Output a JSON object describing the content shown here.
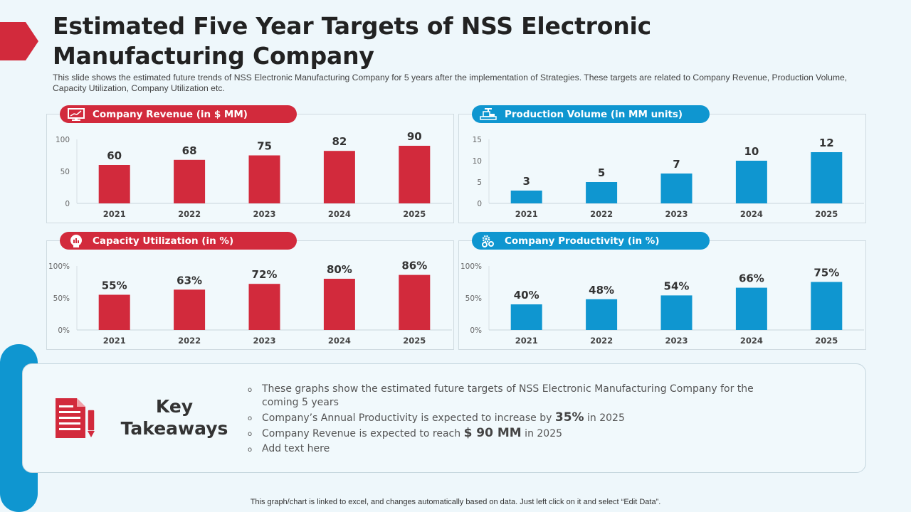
{
  "header": {
    "title_line1": "Estimated Five Year Targets of NSS Electronic",
    "title_line2": "Manufacturing Company",
    "subtitle": "This slide shows the estimated future trends of NSS Electronic Manufacturing Company for 5 years after the implementation of Strategies. These targets are related to Company Revenue, Production Volume, Capacity Utilization, Company Utilization etc."
  },
  "colors": {
    "red": "#d22a3c",
    "blue": "#0f96d0"
  },
  "chart_data": [
    {
      "type": "bar",
      "title": "Company Revenue (in $ MM)",
      "icon": "monitor-chart-icon",
      "color": "#d22a3c",
      "categories": [
        "2021",
        "2022",
        "2023",
        "2024",
        "2025"
      ],
      "values": [
        60,
        68,
        75,
        82,
        90
      ],
      "value_labels": [
        "60",
        "68",
        "75",
        "82",
        "90"
      ],
      "yticks": [
        "0",
        "50",
        "100"
      ],
      "ylim": [
        0,
        100
      ],
      "xlabel": "",
      "ylabel": ""
    },
    {
      "type": "bar",
      "title": "Production Volume (in MM units)",
      "icon": "factory-icon",
      "color": "#0f96d0",
      "categories": [
        "2021",
        "2022",
        "2023",
        "2024",
        "2025"
      ],
      "values": [
        3,
        5,
        7,
        10,
        12
      ],
      "value_labels": [
        "3",
        "5",
        "7",
        "10",
        "12"
      ],
      "yticks": [
        "0",
        "5",
        "10",
        "15"
      ],
      "ylim": [
        0,
        15
      ],
      "xlabel": "",
      "ylabel": ""
    },
    {
      "type": "bar",
      "title": "Capacity Utilization (in %)",
      "icon": "head-chart-icon",
      "color": "#d22a3c",
      "categories": [
        "2021",
        "2022",
        "2023",
        "2024",
        "2025"
      ],
      "values": [
        55,
        63,
        72,
        80,
        86
      ],
      "value_labels": [
        "55%",
        "63%",
        "72%",
        "80%",
        "86%"
      ],
      "yticks": [
        "0%",
        "50%",
        "100%"
      ],
      "ylim": [
        0,
        100
      ],
      "xlabel": "",
      "ylabel": ""
    },
    {
      "type": "bar",
      "title": "Company Productivity (in %)",
      "icon": "gears-icon",
      "color": "#0f96d0",
      "categories": [
        "2021",
        "2022",
        "2023",
        "2024",
        "2025"
      ],
      "values": [
        40,
        48,
        54,
        66,
        75
      ],
      "value_labels": [
        "40%",
        "48%",
        "54%",
        "66%",
        "75%"
      ],
      "yticks": [
        "0%",
        "50%",
        "100%"
      ],
      "ylim": [
        0,
        100
      ],
      "xlabel": "",
      "ylabel": ""
    }
  ],
  "takeaways": {
    "title_line1": "Key",
    "title_line2": "Takeaways",
    "items": [
      {
        "pre": "These graphs show the estimated future targets of NSS Electronic Manufacturing Company for the coming 5 years",
        "bold": "",
        "post": ""
      },
      {
        "pre": "Company’s Annual Productivity is expected to increase by ",
        "bold": "35%",
        "post": " in 2025"
      },
      {
        "pre": "Company Revenue is expected to reach ",
        "bold": "$ 90 MM",
        "post": " in 2025"
      },
      {
        "pre": "Add text here",
        "bold": "",
        "post": ""
      }
    ]
  },
  "footer": "This graph/chart is linked to excel, and changes automatically based on data. Just left click on it and select “Edit Data”."
}
